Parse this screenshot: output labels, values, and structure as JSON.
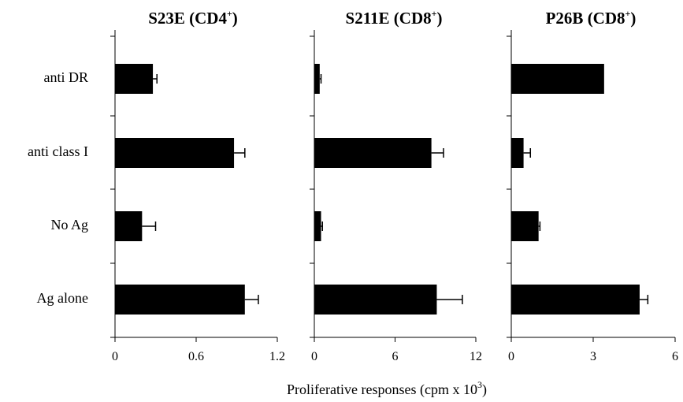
{
  "figure": {
    "xlabel": "Proliferative responses (cpm x 10",
    "xlabel_sup": "3",
    "xlabel_end": ")"
  },
  "chart_data": [
    {
      "type": "bar",
      "orientation": "horizontal",
      "title": "S23E (CD4",
      "title_sup": "+",
      "title_end": ")",
      "categories": [
        "anti DR",
        "anti class I",
        "No Ag",
        "Ag alone"
      ],
      "values": [
        0.28,
        0.88,
        0.2,
        0.96
      ],
      "errors": [
        0.03,
        0.08,
        0.1,
        0.1
      ],
      "xlim": [
        0,
        1.2
      ],
      "xticks": [
        "0",
        "0.6",
        "1.2"
      ],
      "color": "#000000"
    },
    {
      "type": "bar",
      "orientation": "horizontal",
      "title": "S211E (CD8",
      "title_sup": "+",
      "title_end": ")",
      "categories": [
        "anti DR",
        "anti class I",
        "No Ag",
        "Ag alone"
      ],
      "values": [
        0.4,
        8.7,
        0.5,
        9.1
      ],
      "errors": [
        0.1,
        0.9,
        0.1,
        1.9
      ],
      "xlim": [
        0,
        12
      ],
      "xticks": [
        "0",
        "6",
        "12"
      ],
      "color": "#000000"
    },
    {
      "type": "bar",
      "orientation": "horizontal",
      "title": "P26B (CD8",
      "title_sup": "+",
      "title_end": ")",
      "categories": [
        "anti DR",
        "anti class I",
        "No Ag",
        "Ag alone"
      ],
      "values": [
        3.4,
        0.45,
        1.0,
        4.7
      ],
      "errors": [
        0.0,
        0.25,
        0.05,
        0.3
      ],
      "xlim": [
        0,
        6
      ],
      "xticks": [
        "0",
        "3",
        "6"
      ],
      "color": "#000000"
    }
  ]
}
